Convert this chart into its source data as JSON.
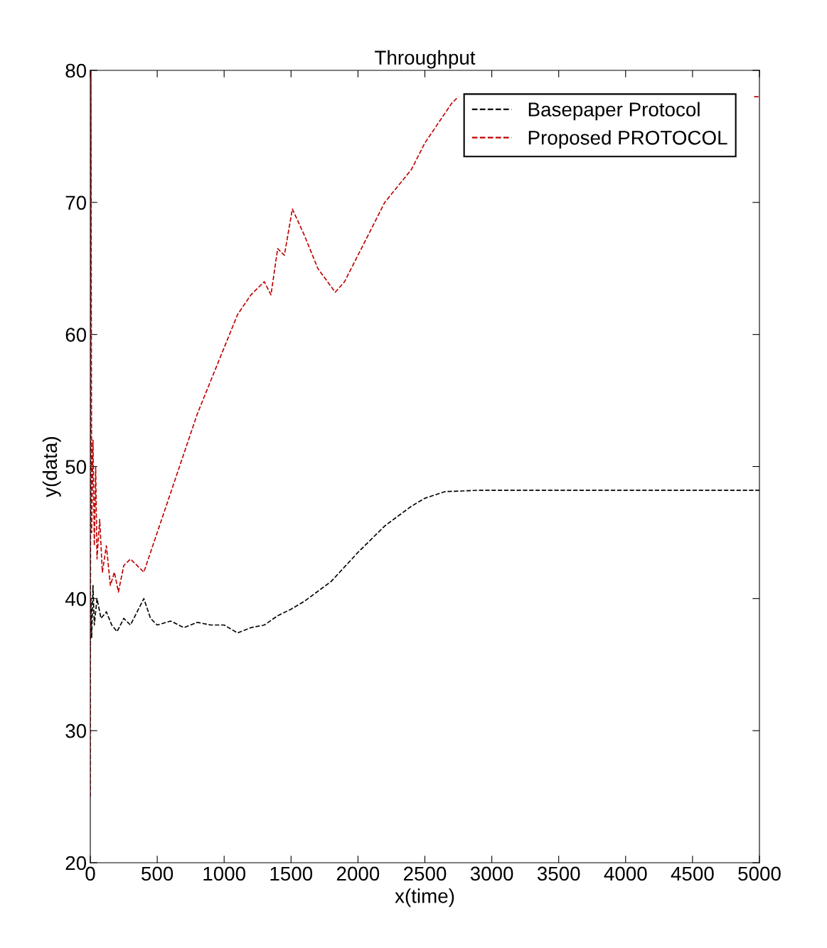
{
  "chart_data": {
    "type": "line",
    "title": "Throughput",
    "xlabel": "x(time)",
    "ylabel": "y(data)",
    "xlim": [
      0,
      5000
    ],
    "xticks": [
      0,
      500,
      1000,
      1500,
      2000,
      2500,
      3000,
      3500,
      4000,
      4500,
      5000
    ],
    "ylim": [
      20,
      80
    ],
    "yticks": [
      20,
      30,
      40,
      50,
      60,
      70,
      80
    ],
    "grid": false,
    "legend": "top right",
    "line_style": "dashed",
    "marker": "none",
    "series": [
      {
        "name": "Basepaper Protocol",
        "color": "#000000",
        "x": [
          0,
          5,
          10,
          20,
          30,
          50,
          80,
          120,
          160,
          200,
          250,
          300,
          350,
          400,
          450,
          500,
          600,
          700,
          800,
          900,
          1000,
          1100,
          1200,
          1300,
          1400,
          1500,
          1600,
          1800,
          2000,
          2200,
          2400,
          2500,
          2650,
          2900,
          5000
        ],
        "values": [
          36,
          40,
          37,
          41,
          38,
          40,
          38.5,
          39,
          38,
          37.5,
          38.5,
          38,
          39,
          40,
          38.5,
          38,
          38.3,
          37.8,
          38.2,
          38,
          38,
          37.4,
          37.8,
          38,
          38.7,
          39.2,
          39.8,
          41.3,
          43.5,
          45.5,
          47,
          47.6,
          48.1,
          48.2,
          48.2
        ]
      },
      {
        "name": "Proposed PROTOCOL",
        "color": "#c00000",
        "x": [
          0,
          5,
          10,
          20,
          30,
          40,
          50,
          70,
          90,
          120,
          150,
          180,
          210,
          250,
          300,
          350,
          400,
          450,
          500,
          600,
          700,
          800,
          900,
          1000,
          1100,
          1200,
          1300,
          1350,
          1400,
          1450,
          1510,
          1600,
          1700,
          1830,
          1900,
          2000,
          2100,
          2200,
          2400,
          2500,
          2600,
          2700,
          2750,
          2800,
          4960,
          5000
        ],
        "values": [
          25,
          80,
          45,
          52,
          44,
          50,
          43,
          46,
          42,
          44,
          41,
          42,
          40.5,
          42.5,
          43,
          42.5,
          42,
          43.5,
          45,
          48,
          51,
          54,
          56.5,
          59,
          61.5,
          63,
          64,
          63,
          66.5,
          66,
          69.5,
          67.5,
          65,
          63.2,
          64,
          66,
          68,
          70,
          72.5,
          74.5,
          76,
          77.5,
          78,
          null,
          78,
          78
        ]
      }
    ]
  }
}
